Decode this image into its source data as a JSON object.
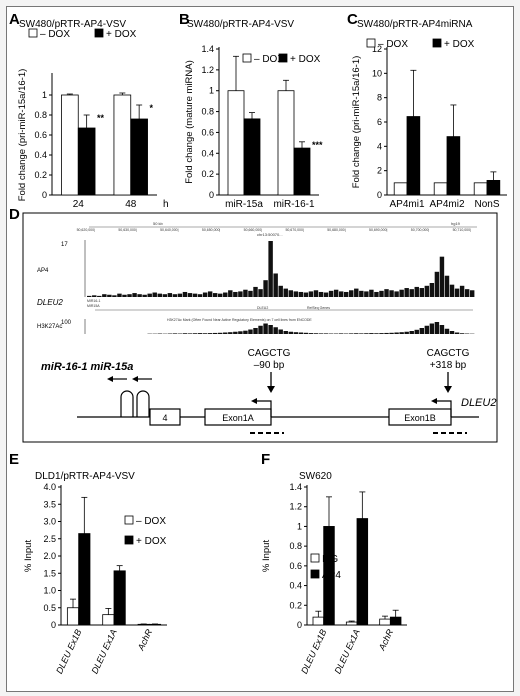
{
  "panels": {
    "A": "A",
    "B": "B",
    "C": "C",
    "D": "D",
    "E": "E",
    "F": "F"
  },
  "chart_data": [
    {
      "panel": "A",
      "type": "bar",
      "title": "SW480/pRTR-AP4-VSV",
      "ylabel": "Fold change (pri-miR-15a/16-1)",
      "xunit": "h",
      "ylim": [
        0,
        1.2
      ],
      "yticks": [
        "0",
        "0.2",
        "0.4",
        "0.6",
        "0.8",
        "1"
      ],
      "categories": [
        "24",
        "48"
      ],
      "series": [
        {
          "name": "– DOX",
          "color": "#ffffff",
          "values": [
            1.0,
            1.0
          ],
          "errors": [
            0.01,
            0.02
          ]
        },
        {
          "name": "+ DOX",
          "color": "#000000",
          "values": [
            0.67,
            0.76
          ],
          "errors": [
            0.13,
            0.14
          ]
        }
      ],
      "annotations": [
        {
          "category": 0,
          "series": 1,
          "text": "**"
        },
        {
          "category": 1,
          "series": 1,
          "text": "*"
        }
      ],
      "legend": "top"
    },
    {
      "panel": "B",
      "type": "bar",
      "title": "SW480/pRTR-AP4-VSV",
      "ylabel": "Fold change (mature miRNA)",
      "xunit": "",
      "ylim": [
        0,
        1.4
      ],
      "yticks": [
        "0",
        "0.2",
        "0.4",
        "0.6",
        "0.8",
        "1",
        "1.2",
        "1.4"
      ],
      "categories": [
        "miR-15a",
        "miR-16-1"
      ],
      "series": [
        {
          "name": "– DOX",
          "color": "#ffffff",
          "values": [
            1.0,
            1.0
          ],
          "errors": [
            0.33,
            0.1
          ]
        },
        {
          "name": "+ DOX",
          "color": "#000000",
          "values": [
            0.73,
            0.45
          ],
          "errors": [
            0.06,
            0.06
          ]
        }
      ],
      "annotations": [
        {
          "category": 1,
          "series": 1,
          "text": "***"
        }
      ],
      "legend": "top-right"
    },
    {
      "panel": "C",
      "type": "bar",
      "title": "SW480/pRTR-AP4miRNA",
      "ylabel": "Fold change (pri-miR-15a/16-1)",
      "xunit": "",
      "ylim": [
        0,
        12
      ],
      "yticks": [
        "0",
        "2",
        "4",
        "6",
        "8",
        "10",
        "12"
      ],
      "categories": [
        "AP4mi1",
        "AP4mi2",
        "NonS"
      ],
      "series": [
        {
          "name": "– DOX",
          "color": "#ffffff",
          "values": [
            1.0,
            1.0,
            1.0
          ],
          "errors": [
            0,
            0,
            0
          ]
        },
        {
          "name": "+ DOX",
          "color": "#000000",
          "values": [
            6.45,
            4.8,
            1.2
          ],
          "errors": [
            3.8,
            2.6,
            0.7
          ]
        }
      ],
      "annotations": [],
      "legend": "top"
    },
    {
      "panel": "E",
      "type": "bar",
      "title": "DLD1/pRTR-AP4-VSV",
      "ylabel": "% Input",
      "xunit": "",
      "ylim": [
        0,
        4.0
      ],
      "yticks": [
        "0",
        "0.5",
        "1.0",
        "1.5",
        "2.0",
        "2.5",
        "3.0",
        "3.5",
        "4.0"
      ],
      "categories": [
        "DLEU Ex1B",
        "DLEU Ex1A",
        "AchR"
      ],
      "series": [
        {
          "name": "– DOX",
          "color": "#ffffff",
          "values": [
            0.5,
            0.3,
            0.02
          ],
          "errors": [
            0.25,
            0.18,
            0.01
          ]
        },
        {
          "name": "+ DOX",
          "color": "#000000",
          "values": [
            2.65,
            1.57,
            0.02
          ],
          "errors": [
            1.05,
            0.15,
            0.01
          ]
        }
      ],
      "annotations": [],
      "legend": "top-right"
    },
    {
      "panel": "F",
      "type": "bar",
      "title": "SW620",
      "ylabel": "% Input",
      "xunit": "",
      "ylim": [
        0,
        1.4
      ],
      "yticks": [
        "0",
        "0.2",
        "0.4",
        "0.6",
        "0.8",
        "1",
        "1.2",
        "1.4"
      ],
      "categories": [
        "DLEU Ex1B",
        "DLEU Ex1A",
        "AchR"
      ],
      "series": [
        {
          "name": "IgG",
          "color": "#ffffff",
          "values": [
            0.08,
            0.03,
            0.06
          ],
          "errors": [
            0.06,
            0.01,
            0.03
          ]
        },
        {
          "name": "AP4",
          "color": "#000000",
          "values": [
            1.0,
            1.08,
            0.08
          ],
          "errors": [
            0.3,
            0.27,
            0.07
          ]
        }
      ],
      "annotations": [],
      "legend": "middle-left"
    }
  ],
  "genome": {
    "ruler": {
      "scale_label": "50 kb",
      "assembly_label": "hg19",
      "chrom_label": "chr13:50070...",
      "ticks": [
        "50,620,000|",
        "50,630,000|",
        "50,640,000|",
        "50,650,000|",
        "50,660,000|",
        "50,670,000|",
        "50,680,000|",
        "50,690,000|",
        "50,700,000|",
        "50,710,000|"
      ]
    },
    "ap4_label": "AP4",
    "ap4_max": "17",
    "dleu2_label": "DLEU2",
    "refseq_label": "RefSeq Genes",
    "h3k27ac_label": "H3K27Ac",
    "h3k27ac_max": "100",
    "h3k27ac_desc": "H3K27Ac Mark (Often Found Near Active Regulatory Elements) on 7 cell lines from ENCODE",
    "small_labels": [
      "MIR16-1",
      "MIR15A"
    ],
    "ap4_profile": [
      0.02,
      0.03,
      0.02,
      0.05,
      0.04,
      0.03,
      0.06,
      0.04,
      0.05,
      0.07,
      0.05,
      0.04,
      0.06,
      0.08,
      0.06,
      0.05,
      0.07,
      0.05,
      0.06,
      0.09,
      0.07,
      0.06,
      0.05,
      0.08,
      0.1,
      0.07,
      0.06,
      0.08,
      0.12,
      0.09,
      0.1,
      0.13,
      0.11,
      0.18,
      0.14,
      0.3,
      1.0,
      0.42,
      0.2,
      0.15,
      0.12,
      0.1,
      0.09,
      0.08,
      0.1,
      0.12,
      0.09,
      0.08,
      0.11,
      0.13,
      0.1,
      0.09,
      0.12,
      0.15,
      0.11,
      0.1,
      0.13,
      0.09,
      0.11,
      0.14,
      0.12,
      0.1,
      0.13,
      0.16,
      0.14,
      0.18,
      0.16,
      0.2,
      0.25,
      0.45,
      0.72,
      0.38,
      0.22,
      0.15,
      0.2,
      0.14,
      0.12
    ],
    "h3_profile": [
      0.0,
      0.0,
      0.0,
      0.0,
      0.0,
      0.0,
      0.0,
      0.0,
      0.0,
      0.0,
      0.0,
      0.0,
      0.02,
      0.02,
      0.03,
      0.02,
      0.03,
      0.04,
      0.03,
      0.05,
      0.04,
      0.05,
      0.06,
      0.05,
      0.06,
      0.07,
      0.08,
      0.1,
      0.12,
      0.15,
      0.18,
      0.22,
      0.3,
      0.4,
      0.55,
      0.7,
      0.6,
      0.45,
      0.3,
      0.2,
      0.15,
      0.12,
      0.1,
      0.08,
      0.06,
      0.05,
      0.04,
      0.04,
      0.03,
      0.03,
      0.04,
      0.03,
      0.04,
      0.05,
      0.04,
      0.05,
      0.06,
      0.05,
      0.06,
      0.07,
      0.08,
      0.1,
      0.12,
      0.15,
      0.2,
      0.28,
      0.4,
      0.55,
      0.7,
      0.8,
      0.6,
      0.35,
      0.2,
      0.1,
      0.05,
      0.03,
      0.02
    ]
  },
  "gene_map": {
    "mir_label": "miR-16-1 miR-15a",
    "box_label": "4",
    "exon1a_label": "Exon1A",
    "exon1b_label": "Exon1B",
    "dleu2_label": "DLEU2",
    "site1_label": "CAGCTG",
    "site1_pos": "–90 bp",
    "site2_label": "CAGCTG",
    "site2_pos": "+318 bp"
  }
}
